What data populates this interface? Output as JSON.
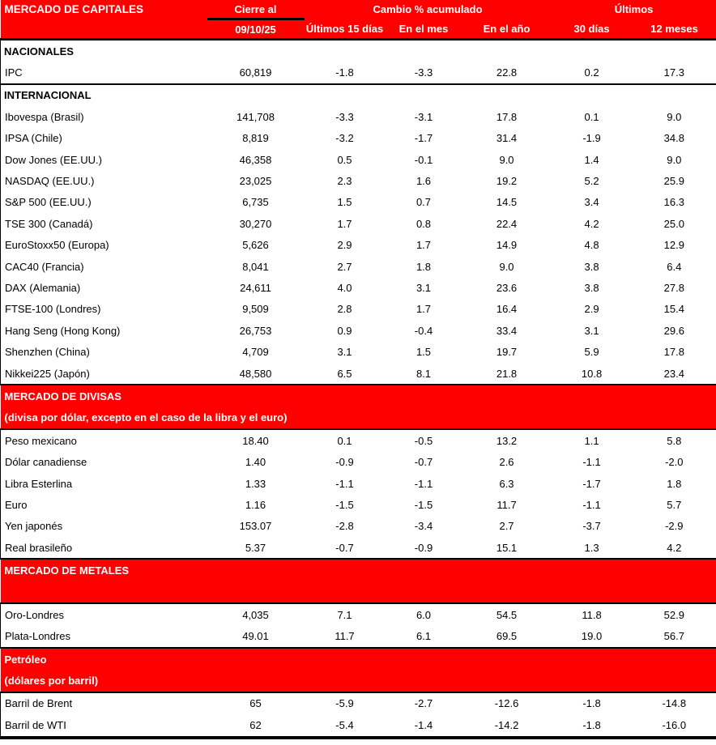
{
  "colors": {
    "accent_red": "#ff0000",
    "header_text": "#ffffff",
    "body_text": "#000000",
    "border_black": "#000000"
  },
  "header": {
    "title": "MERCADO DE CAPITALES",
    "close_col": {
      "label": "Cierre al",
      "date": "09/10/25"
    },
    "change_group_label": "Cambio % acumulado",
    "last_group_label": "Últimos",
    "subcols": [
      "Últimos 15 días",
      "En el mes",
      "En el año",
      "30 días",
      "12 meses"
    ]
  },
  "rows": [
    {
      "kind": "section",
      "label": "NACIONALES"
    },
    {
      "kind": "data",
      "label": "IPC",
      "values": [
        "60,819",
        "-1.8",
        "-3.3",
        "22.8",
        "0.2",
        "17.3"
      ]
    },
    {
      "kind": "section",
      "label": "INTERNACIONAL"
    },
    {
      "kind": "data",
      "label": "Ibovespa (Brasil)",
      "values": [
        "141,708",
        "-3.3",
        "-3.1",
        "17.8",
        "0.1",
        "9.0"
      ]
    },
    {
      "kind": "data",
      "label": "IPSA (Chile)",
      "values": [
        "8,819",
        "-3.2",
        "-1.7",
        "31.4",
        "-1.9",
        "34.8"
      ]
    },
    {
      "kind": "data",
      "label": "Dow Jones (EE.UU.)",
      "values": [
        "46,358",
        "0.5",
        "-0.1",
        "9.0",
        "1.4",
        "9.0"
      ]
    },
    {
      "kind": "data",
      "label": "NASDAQ (EE.UU.)",
      "values": [
        "23,025",
        "2.3",
        "1.6",
        "19.2",
        "5.2",
        "25.9"
      ]
    },
    {
      "kind": "data",
      "label": "S&P 500 (EE.UU.)",
      "values": [
        "6,735",
        "1.5",
        "0.7",
        "14.5",
        "3.4",
        "16.3"
      ]
    },
    {
      "kind": "data",
      "label": "TSE 300 (Canadá)",
      "values": [
        "30,270",
        "1.7",
        "0.8",
        "22.4",
        "4.2",
        "25.0"
      ]
    },
    {
      "kind": "data",
      "label": "EuroStoxx50 (Europa)",
      "values": [
        "5,626",
        "2.9",
        "1.7",
        "14.9",
        "4.8",
        "12.9"
      ]
    },
    {
      "kind": "data",
      "label": "CAC40 (Francia)",
      "values": [
        "8,041",
        "2.7",
        "1.8",
        "9.0",
        "3.8",
        "6.4"
      ]
    },
    {
      "kind": "data",
      "label": "DAX (Alemania)",
      "values": [
        "24,611",
        "4.0",
        "3.1",
        "23.6",
        "3.8",
        "27.8"
      ]
    },
    {
      "kind": "data",
      "label": "FTSE-100 (Londres)",
      "values": [
        "9,509",
        "2.8",
        "1.7",
        "16.4",
        "2.9",
        "15.4"
      ]
    },
    {
      "kind": "data",
      "label": "Hang Seng (Hong Kong)",
      "values": [
        "26,753",
        "0.9",
        "-0.4",
        "33.4",
        "3.1",
        "29.6"
      ]
    },
    {
      "kind": "data",
      "label": "Shenzhen (China)",
      "values": [
        "4,709",
        "3.1",
        "1.5",
        "19.7",
        "5.9",
        "17.8"
      ]
    },
    {
      "kind": "data",
      "label": "Nikkei225 (Japón)",
      "values": [
        "48,580",
        "6.5",
        "8.1",
        "21.8",
        "10.8",
        "23.4"
      ]
    },
    {
      "kind": "band",
      "label": "MERCADO DE DIVISAS"
    },
    {
      "kind": "band",
      "label": "(divisa por dólar, excepto en el caso de la libra y el euro)"
    },
    {
      "kind": "data",
      "label": "Peso mexicano",
      "values": [
        "18.40",
        "0.1",
        "-0.5",
        "13.2",
        "1.1",
        "5.8"
      ]
    },
    {
      "kind": "data",
      "label": "Dólar canadiense",
      "values": [
        "1.40",
        "-0.9",
        "-0.7",
        "2.6",
        "-1.1",
        "-2.0"
      ]
    },
    {
      "kind": "data",
      "label": "Libra Esterlina",
      "values": [
        "1.33",
        "-1.1",
        "-1.1",
        "6.3",
        "-1.7",
        "1.8"
      ]
    },
    {
      "kind": "data",
      "label": "Euro",
      "values": [
        "1.16",
        "-1.5",
        "-1.5",
        "11.7",
        "-1.1",
        "5.7"
      ]
    },
    {
      "kind": "data",
      "label": "Yen japonés",
      "values": [
        "153.07",
        "-2.8",
        "-3.4",
        "2.7",
        "-3.7",
        "-2.9"
      ]
    },
    {
      "kind": "data",
      "label": "Real brasileño",
      "values": [
        "5.37",
        "-0.7",
        "-0.9",
        "15.1",
        "1.3",
        "4.2"
      ]
    },
    {
      "kind": "band",
      "label": "MERCADO DE METALES"
    },
    {
      "kind": "band",
      "label": ""
    },
    {
      "kind": "data",
      "label": "Oro-Londres",
      "values": [
        "4,035",
        "7.1",
        "6.0",
        "54.5",
        "11.8",
        "52.9"
      ]
    },
    {
      "kind": "data",
      "label": "Plata-Londres",
      "values": [
        "49.01",
        "11.7",
        "6.1",
        "69.5",
        "19.0",
        "56.7"
      ]
    },
    {
      "kind": "band",
      "label": "Petróleo"
    },
    {
      "kind": "band",
      "label": "(dólares por barril)"
    },
    {
      "kind": "data",
      "label": "Barril de Brent",
      "values": [
        "65",
        "-5.9",
        "-2.7",
        "-12.6",
        "-1.8",
        "-14.8"
      ]
    },
    {
      "kind": "data",
      "label": "Barril de WTI",
      "values": [
        "62",
        "-5.4",
        "-1.4",
        "-14.2",
        "-1.8",
        "-16.0"
      ]
    }
  ]
}
